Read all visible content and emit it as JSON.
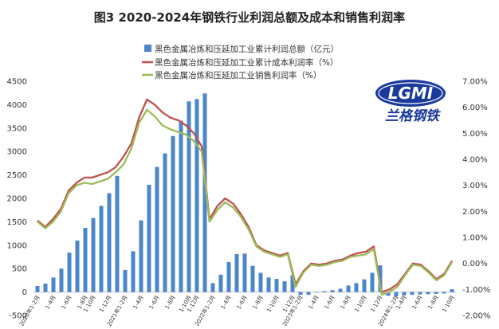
{
  "chart_data": {
    "type": "bar+line",
    "title": "图3 2020-2024年钢铁行业利润总额及成本和销售利润率",
    "legend": [
      {
        "name": "黑色金属冶炼和压延加工业累计利润总额（亿元）",
        "color": "#4a86c9",
        "kind": "bar"
      },
      {
        "name": "黑色金属冶炼和压延加工业累计成本利润率（%）",
        "color": "#c0504d",
        "kind": "line"
      },
      {
        "name": "黑色金属冶炼和压延加工业销售利润率（%）",
        "color": "#9bbb59",
        "kind": "line"
      }
    ],
    "left_axis": {
      "ylim": [
        -500,
        4500
      ],
      "ticks": [
        -500,
        0,
        500,
        1000,
        1500,
        2000,
        2500,
        3000,
        3500,
        4000,
        4500
      ]
    },
    "right_axis": {
      "ylim": [
        -2,
        7
      ],
      "ticks": [
        "-2.00%",
        "-1.00%",
        "0.00%",
        "1.00%",
        "2.00%",
        "3.00%",
        "4.00%",
        "5.00%",
        "6.00%",
        "7.00%"
      ]
    },
    "x_tick_labels": [
      "2020年1-2月",
      "1-4月",
      "1-6月",
      "1-8月",
      "1-10月",
      "1-12月",
      "2021年1-2月",
      "1-4月",
      "1-6月",
      "1-8月",
      "1-10月",
      "1-12月",
      "2022年1-2月",
      "1-4月",
      "1-6月",
      "1-8月",
      "1-10月",
      "1-12月",
      "2023年1-2月",
      "1-4月",
      "1-6月",
      "1-8月",
      "1-10月",
      "1-12月",
      "2024年1-2月",
      "1-4月",
      "1-6月",
      "1-8月",
      "1-10月"
    ],
    "series": [
      {
        "name": "黑色金属冶炼和压延加工业累计利润总额（亿元）",
        "axis": "left",
        "values": [
          130,
          180,
          310,
          500,
          840,
          1100,
          1370,
          1580,
          1840,
          2110,
          2480,
          470,
          870,
          1530,
          2290,
          2670,
          2960,
          3330,
          3660,
          4070,
          4120,
          4240,
          190,
          370,
          640,
          810,
          820,
          560,
          410,
          310,
          280,
          230,
          360,
          -60,
          -60,
          -10,
          20,
          40,
          70,
          140,
          190,
          270,
          410,
          570,
          -80,
          -90,
          -70,
          -60,
          -50,
          -45,
          -40,
          -30,
          60
        ]
      },
      {
        "name": "黑色金属冶炼和压延加工业累计成本利润率（%）",
        "axis": "right",
        "values": [
          1.65,
          1.4,
          1.7,
          2.1,
          2.8,
          3.1,
          3.3,
          3.3,
          3.4,
          3.5,
          3.7,
          4.1,
          4.6,
          5.6,
          6.3,
          6.1,
          5.8,
          5.6,
          5.5,
          5.3,
          5.0,
          4.5,
          1.7,
          2.2,
          2.5,
          2.3,
          1.9,
          1.4,
          0.7,
          0.5,
          0.4,
          0.3,
          0.4,
          -0.8,
          -0.3,
          0.0,
          -0.05,
          0.0,
          0.1,
          0.15,
          0.3,
          0.4,
          0.45,
          0.65,
          -1.1,
          -1.0,
          -0.8,
          -0.4,
          0.0,
          -0.05,
          -0.3,
          -0.6,
          -0.4,
          0.1
        ]
      },
      {
        "name": "黑色金属冶炼和压延加工业销售利润率（%）",
        "axis": "right",
        "values": [
          1.6,
          1.35,
          1.6,
          2.0,
          2.7,
          3.0,
          3.1,
          3.05,
          3.15,
          3.25,
          3.5,
          3.8,
          4.4,
          5.4,
          5.9,
          5.65,
          5.3,
          5.15,
          5.05,
          4.95,
          4.7,
          4.3,
          1.6,
          2.05,
          2.35,
          2.15,
          1.8,
          1.3,
          0.65,
          0.45,
          0.35,
          0.25,
          0.35,
          -0.9,
          -0.35,
          -0.05,
          -0.1,
          -0.05,
          0.05,
          0.1,
          0.25,
          0.3,
          0.35,
          0.55,
          -1.2,
          -1.1,
          -0.9,
          -0.45,
          -0.05,
          -0.1,
          -0.35,
          -0.65,
          -0.45,
          0.05
        ]
      }
    ]
  },
  "logo": {
    "main": "LGMI",
    "sub": "兰格钢铁"
  },
  "colors": {
    "bar": "#4a86c9",
    "cost_line": "#c0504d",
    "sales_line": "#9bbb59",
    "axis": "#bfbfbf",
    "logo_blue": "#1a3a9c"
  }
}
